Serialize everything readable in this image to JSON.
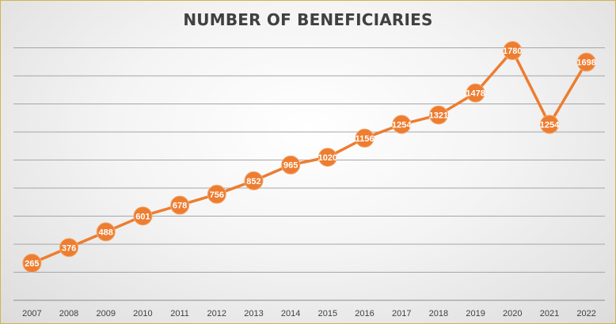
{
  "chart_data": {
    "type": "line",
    "title": "NUMBER OF BENEFICIARIES",
    "xlabel": "",
    "ylabel": "",
    "categories": [
      "2007",
      "2008",
      "2009",
      "2010",
      "2011",
      "2012",
      "2013",
      "2014",
      "2015",
      "2016",
      "2017",
      "2018",
      "2019",
      "2020",
      "2021",
      "2022"
    ],
    "series": [
      {
        "values": [
          265,
          376,
          488,
          601,
          678,
          756,
          852,
          965,
          1020,
          1156,
          1254,
          1321,
          1478,
          1780,
          1254,
          1698
        ]
      }
    ],
    "ylim": [
      0,
      2000
    ],
    "grid": true,
    "legend": "none",
    "colors": {
      "line": "#ed7d31",
      "gridline": "#a6a6a6"
    }
  }
}
